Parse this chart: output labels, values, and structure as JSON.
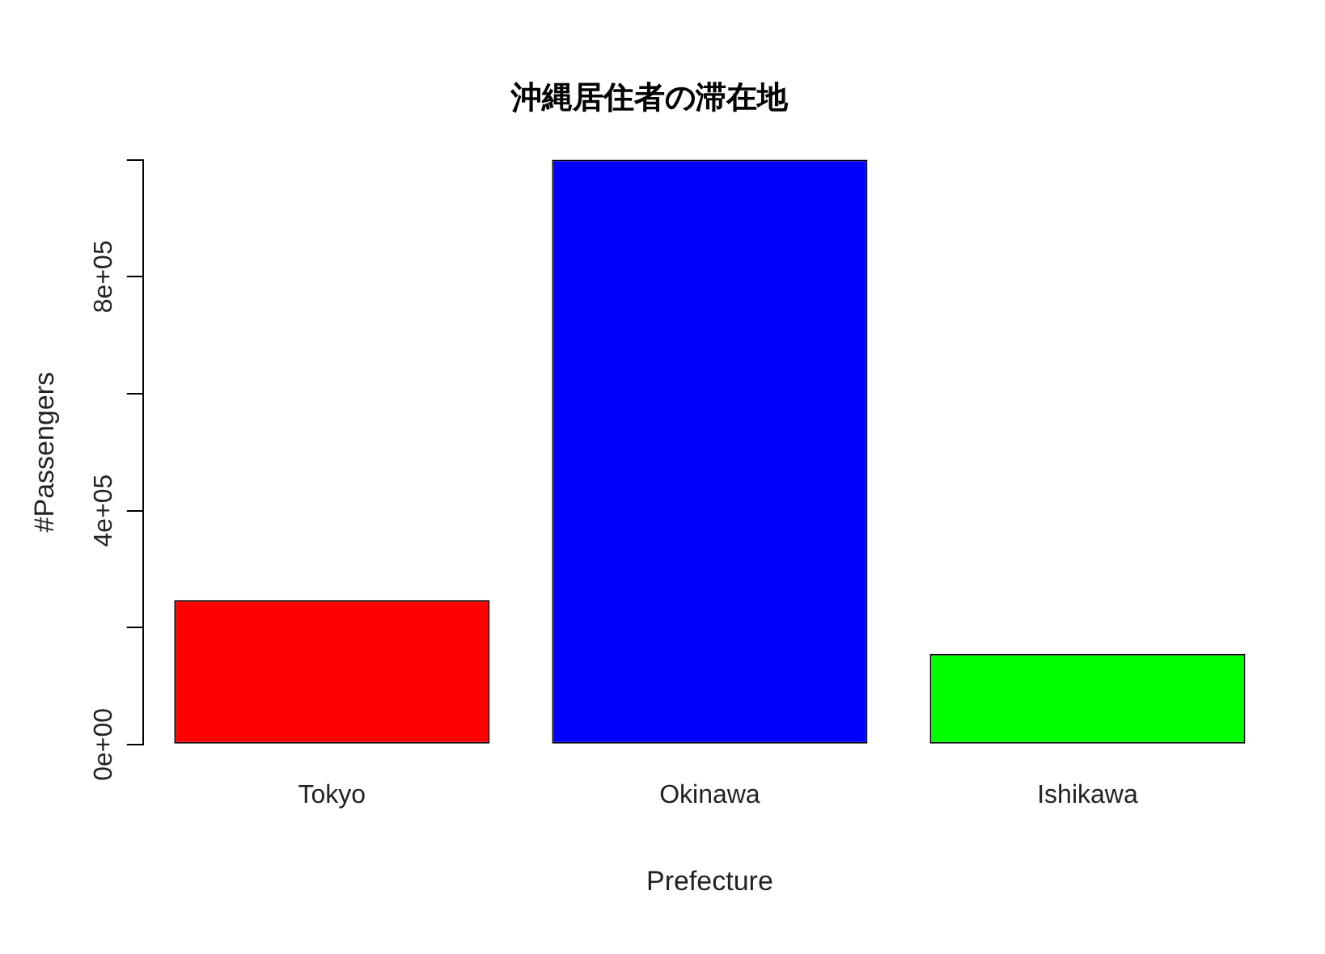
{
  "chart_data": {
    "type": "bar",
    "title": "沖縄居住者の滞在地",
    "xlabel": "Prefecture",
    "ylabel": "#Passengers",
    "categories": [
      "Tokyo",
      "Okinawa",
      "Ishikawa"
    ],
    "values": [
      247000,
      1000000,
      155000
    ],
    "colors": [
      "#ff0000",
      "#0000ff",
      "#00ff00"
    ],
    "ylim": [
      0,
      1000000
    ],
    "yticks": [
      {
        "value": 0,
        "label": "0e+00"
      },
      {
        "value": 200000,
        "label": null
      },
      {
        "value": 400000,
        "label": "4e+05"
      },
      {
        "value": 600000,
        "label": null
      },
      {
        "value": 800000,
        "label": "8e+05"
      },
      {
        "value": 1000000,
        "label": null
      }
    ]
  }
}
